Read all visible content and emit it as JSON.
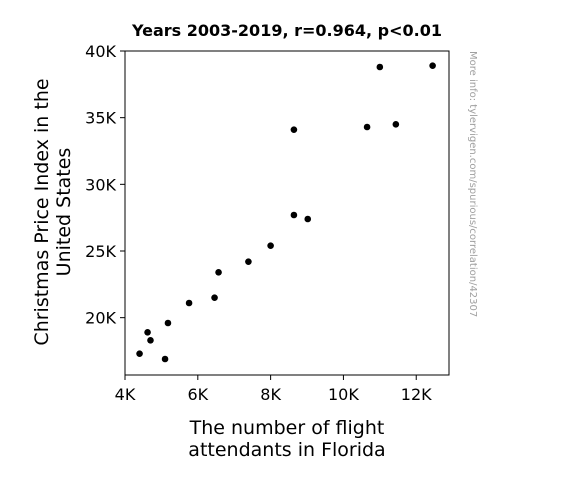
{
  "chart_data": {
    "type": "scatter",
    "title": "Years 2003-2019, r=0.964, p<0.01",
    "xlabel": [
      "The number of flight",
      "attendants in Florida"
    ],
    "ylabel": [
      "Christmas Price Index in the",
      "United States"
    ],
    "side_note": "More info: tylervigen.com/spurious/correlation/42307",
    "xlim": [
      4000,
      12900
    ],
    "ylim": [
      15700,
      40000
    ],
    "x_ticks": [
      {
        "value": 4000,
        "label": "4K"
      },
      {
        "value": 6000,
        "label": "6K"
      },
      {
        "value": 8000,
        "label": "8K"
      },
      {
        "value": 10000,
        "label": "10K"
      },
      {
        "value": 12000,
        "label": "12K"
      }
    ],
    "y_ticks": [
      {
        "value": 20000,
        "label": "20K"
      },
      {
        "value": 25000,
        "label": "25K"
      },
      {
        "value": 30000,
        "label": "30K"
      },
      {
        "value": 35000,
        "label": "35K"
      },
      {
        "value": 40000,
        "label": "40K"
      }
    ],
    "grid": false,
    "point_color": "#000000",
    "points": [
      {
        "x": 4400,
        "y": 17300
      },
      {
        "x": 4620,
        "y": 18900
      },
      {
        "x": 4700,
        "y": 18300
      },
      {
        "x": 5100,
        "y": 16900
      },
      {
        "x": 5180,
        "y": 19600
      },
      {
        "x": 5760,
        "y": 21100
      },
      {
        "x": 6460,
        "y": 21500
      },
      {
        "x": 6570,
        "y": 23400
      },
      {
        "x": 7390,
        "y": 24200
      },
      {
        "x": 8000,
        "y": 25400
      },
      {
        "x": 8640,
        "y": 34100
      },
      {
        "x": 8640,
        "y": 27700
      },
      {
        "x": 9020,
        "y": 27400
      },
      {
        "x": 10650,
        "y": 34300
      },
      {
        "x": 11000,
        "y": 38800
      },
      {
        "x": 11440,
        "y": 34500
      },
      {
        "x": 12450,
        "y": 38900
      }
    ]
  }
}
